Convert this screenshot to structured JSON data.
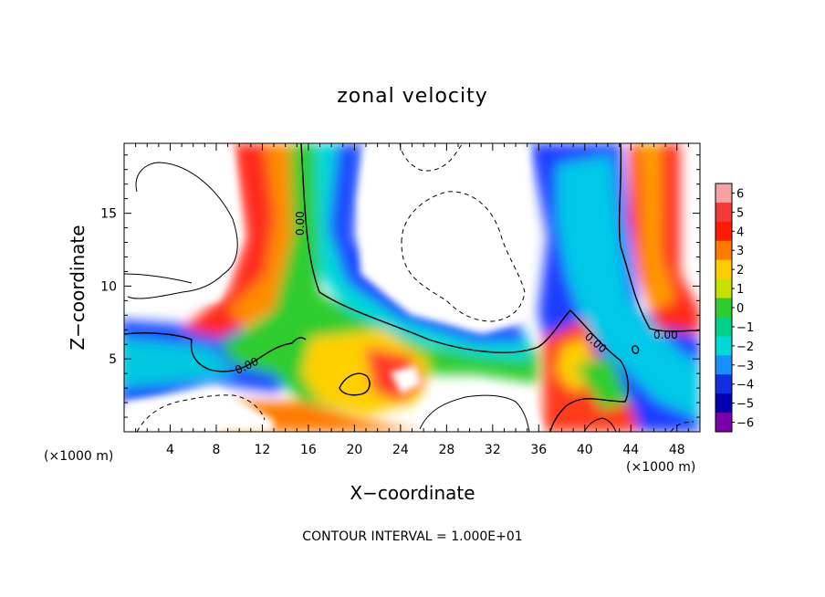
{
  "chart_data": {
    "type": "heatmap",
    "title": "zonal velocity",
    "xlabel": "X−coordinate",
    "ylabel": "Z−coordinate",
    "x_unit_note": "(×1000 m)",
    "y_unit_note": "(×1000 m)",
    "x_range": [
      0,
      50
    ],
    "y_range": [
      0,
      19.8
    ],
    "x_ticks": [
      4,
      8,
      12,
      16,
      20,
      24,
      28,
      32,
      36,
      40,
      44,
      48
    ],
    "y_ticks": [
      5,
      10,
      15
    ],
    "x_tick_labels": [
      "4",
      "8",
      "12",
      "16",
      "20",
      "24",
      "28",
      "32",
      "36",
      "40",
      "44",
      "48"
    ],
    "y_tick_labels": [
      "5",
      "10",
      "15"
    ],
    "colorbar": {
      "levels": [
        6,
        5,
        4,
        3,
        2,
        1,
        0,
        -1,
        -2,
        -3,
        -4,
        -5,
        -6
      ],
      "labels": [
        "6",
        "5",
        "4",
        "3",
        "2",
        "1",
        "0",
        "−1",
        "−2",
        "−3",
        "−4",
        "−5",
        "−6"
      ],
      "colors": [
        "#f4a3a3",
        "#f23a3a",
        "#ff1a00",
        "#ff7a00",
        "#ffcc00",
        "#c8e000",
        "#2ecc2e",
        "#00d08a",
        "#00d8d8",
        "#1890ff",
        "#1030e0",
        "#0000b0",
        "#7b00a8"
      ]
    },
    "contour_labels": [
      "0.00",
      "0.00",
      "0.00",
      "0.00"
    ],
    "footer": "CONTOUR INTERVAL = 1.000E+01"
  }
}
